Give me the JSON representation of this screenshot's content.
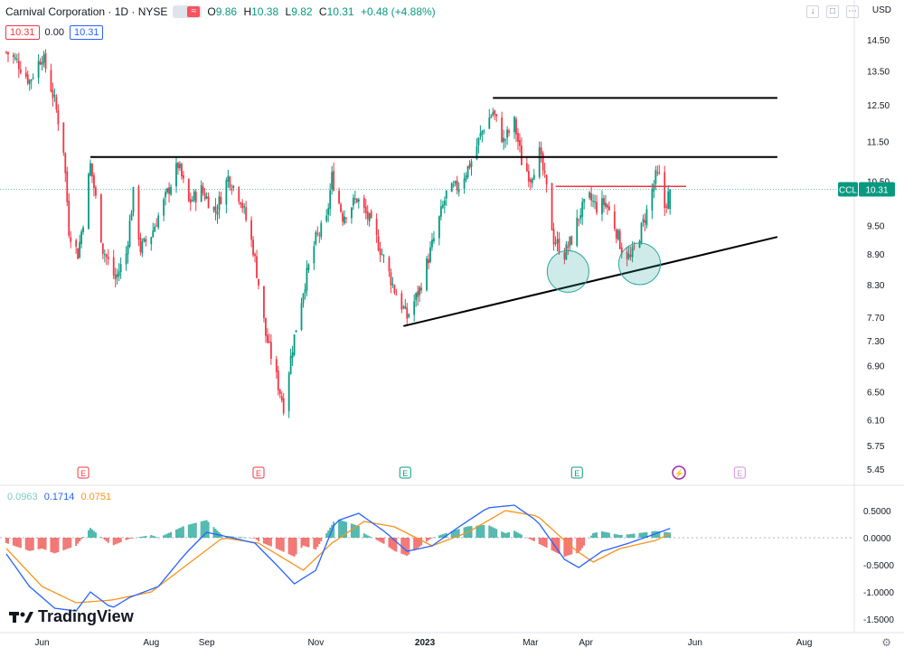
{
  "header": {
    "title": "Carnival Corporation · 1D · NYSE",
    "toggle_icon": "≈",
    "open_label": "O",
    "open": "9.86",
    "high_label": "H",
    "high": "10.38",
    "low_label": "L",
    "low": "9.82",
    "close_label": "C",
    "close": "10.31",
    "change": "+0.48 (+4.88%)",
    "box1": "10.31",
    "spread": "0.00",
    "box2": "10.31"
  },
  "currency": "USD",
  "symbol_tag": "CCL",
  "price_tag": "10.31",
  "macd_legend": {
    "hist": "0.0963",
    "macd": "0.1714",
    "signal": "0.0751"
  },
  "brand": "TradingView",
  "colors": {
    "up": "#089981",
    "down": "#f23645",
    "macd": "#2962ff",
    "signal": "#f7931a",
    "hist_up": "#26a69a",
    "hist_down": "#ef5350",
    "circle": "#26a69a"
  },
  "chart_data": {
    "type": "candlestick",
    "price_axis": {
      "ticks": [
        14.5,
        13.5,
        12.5,
        11.5,
        10.5,
        9.5,
        8.9,
        8.3,
        7.7,
        7.3,
        6.9,
        6.5,
        6.1,
        5.75,
        5.45
      ],
      "ylim": [
        5.45,
        14.5
      ],
      "scale": "log"
    },
    "macd_axis": {
      "ticks": [
        0.5,
        0.0,
        -0.5,
        -1.0,
        -1.5
      ],
      "ylim": [
        -1.5,
        0.5
      ]
    },
    "x_ticks": [
      "Jun",
      "Aug",
      "Sep",
      "Nov",
      "2023",
      "Mar",
      "Apr",
      "Jun",
      "Aug"
    ],
    "x_tick_pos": [
      "2022-06-01",
      "2022-08-01",
      "2022-09-01",
      "2022-11-01",
      "2023-01-01",
      "2023-03-01",
      "2023-04-01",
      "2023-06-01",
      "2023-08-01"
    ],
    "x_range": [
      "2022-05-11",
      "2023-08-29"
    ],
    "price_path": [
      [
        "2022-05-12",
        14.1
      ],
      [
        "2022-05-18",
        13.8
      ],
      [
        "2022-05-25",
        13.2
      ],
      [
        "2022-06-01",
        14.0
      ],
      [
        "2022-06-08",
        12.6
      ],
      [
        "2022-06-13",
        11.3
      ],
      [
        "2022-06-16",
        9.4
      ],
      [
        "2022-06-21",
        8.9
      ],
      [
        "2022-06-24",
        9.6
      ],
      [
        "2022-06-28",
        10.9
      ],
      [
        "2022-07-05",
        9.0
      ],
      [
        "2022-07-12",
        8.4
      ],
      [
        "2022-07-18",
        8.9
      ],
      [
        "2022-07-22",
        10.2
      ],
      [
        "2022-07-26",
        9.0
      ],
      [
        "2022-08-01",
        9.3
      ],
      [
        "2022-08-08",
        10.0
      ],
      [
        "2022-08-16",
        10.9
      ],
      [
        "2022-08-22",
        10.0
      ],
      [
        "2022-08-29",
        10.3
      ],
      [
        "2022-09-06",
        9.8
      ],
      [
        "2022-09-13",
        10.6
      ],
      [
        "2022-09-20",
        10.1
      ],
      [
        "2022-09-27",
        9.0
      ],
      [
        "2022-10-04",
        7.4
      ],
      [
        "2022-10-11",
        6.6
      ],
      [
        "2022-10-14",
        6.3
      ],
      [
        "2022-10-19",
        7.2
      ],
      [
        "2022-10-25",
        8.2
      ],
      [
        "2022-11-01",
        9.2
      ],
      [
        "2022-11-07",
        9.6
      ],
      [
        "2022-11-10",
        10.6
      ],
      [
        "2022-11-16",
        9.7
      ],
      [
        "2022-11-24",
        10.1
      ],
      [
        "2022-12-01",
        9.6
      ],
      [
        "2022-12-08",
        8.9
      ],
      [
        "2022-12-15",
        8.2
      ],
      [
        "2022-12-22",
        7.7
      ],
      [
        "2022-12-29",
        8.2
      ],
      [
        "2023-01-06",
        9.2
      ],
      [
        "2023-01-13",
        10.2
      ],
      [
        "2023-01-20",
        10.4
      ],
      [
        "2023-01-27",
        11.0
      ],
      [
        "2023-02-03",
        11.9
      ],
      [
        "2023-02-08",
        12.3
      ],
      [
        "2023-02-14",
        11.5
      ],
      [
        "2023-02-20",
        12.0
      ],
      [
        "2023-02-24",
        11.0
      ],
      [
        "2023-03-01",
        10.6
      ],
      [
        "2023-03-06",
        11.2
      ],
      [
        "2023-03-10",
        10.3
      ],
      [
        "2023-03-14",
        9.2
      ],
      [
        "2023-03-20",
        8.9
      ],
      [
        "2023-03-24",
        9.2
      ],
      [
        "2023-03-29",
        9.8
      ],
      [
        "2023-04-03",
        10.1
      ],
      [
        "2023-04-07",
        9.9
      ],
      [
        "2023-04-12",
        10.0
      ],
      [
        "2023-04-17",
        9.5
      ],
      [
        "2023-04-21",
        9.0
      ],
      [
        "2023-04-26",
        8.8
      ],
      [
        "2023-05-01",
        9.3
      ],
      [
        "2023-05-05",
        9.8
      ],
      [
        "2023-05-10",
        10.6
      ],
      [
        "2023-05-12",
        10.6
      ],
      [
        "2023-05-15",
        9.9
      ],
      [
        "2023-05-18",
        10.31
      ]
    ],
    "macd_path": [
      [
        "2022-05-12",
        -0.3
      ],
      [
        "2022-05-25",
        -0.9
      ],
      [
        "2022-06-08",
        -1.3
      ],
      [
        "2022-06-20",
        -1.35
      ],
      [
        "2022-06-28",
        -1.0
      ],
      [
        "2022-07-10",
        -1.3
      ],
      [
        "2022-07-20",
        -1.1
      ],
      [
        "2022-08-05",
        -0.9
      ],
      [
        "2022-08-20",
        -0.3
      ],
      [
        "2022-09-01",
        0.1
      ],
      [
        "2022-09-15",
        0.0
      ],
      [
        "2022-09-28",
        -0.1
      ],
      [
        "2022-10-10",
        -0.5
      ],
      [
        "2022-10-20",
        -0.85
      ],
      [
        "2022-11-01",
        -0.6
      ],
      [
        "2022-11-12",
        0.3
      ],
      [
        "2022-11-25",
        0.45
      ],
      [
        "2022-12-10",
        0.1
      ],
      [
        "2022-12-22",
        -0.25
      ],
      [
        "2023-01-05",
        -0.15
      ],
      [
        "2023-01-20",
        0.2
      ],
      [
        "2023-02-05",
        0.55
      ],
      [
        "2023-02-20",
        0.6
      ],
      [
        "2023-03-05",
        0.3
      ],
      [
        "2023-03-20",
        -0.4
      ],
      [
        "2023-03-28",
        -0.55
      ],
      [
        "2023-04-10",
        -0.25
      ],
      [
        "2023-04-25",
        -0.1
      ],
      [
        "2023-05-08",
        0.05
      ],
      [
        "2023-05-18",
        0.17
      ]
    ],
    "signal_path": [
      [
        "2022-05-12",
        -0.2
      ],
      [
        "2022-06-01",
        -0.9
      ],
      [
        "2022-06-20",
        -1.2
      ],
      [
        "2022-07-10",
        -1.15
      ],
      [
        "2022-08-01",
        -1.0
      ],
      [
        "2022-08-25",
        -0.4
      ],
      [
        "2022-09-10",
        0.0
      ],
      [
        "2022-09-30",
        -0.1
      ],
      [
        "2022-10-25",
        -0.6
      ],
      [
        "2022-11-10",
        -0.1
      ],
      [
        "2022-11-28",
        0.3
      ],
      [
        "2022-12-15",
        0.2
      ],
      [
        "2023-01-05",
        -0.15
      ],
      [
        "2023-01-25",
        0.1
      ],
      [
        "2023-02-15",
        0.5
      ],
      [
        "2023-03-05",
        0.4
      ],
      [
        "2023-03-25",
        -0.2
      ],
      [
        "2023-04-05",
        -0.45
      ],
      [
        "2023-04-20",
        -0.2
      ],
      [
        "2023-05-10",
        -0.05
      ],
      [
        "2023-05-18",
        0.075
      ]
    ],
    "lines": [
      {
        "name": "resistance-top",
        "color": "#000000",
        "from": [
          "2023-02-08",
          12.7
        ],
        "to": [
          "2023-07-17",
          12.7
        ]
      },
      {
        "name": "resistance-mid",
        "color": "#000000",
        "from": [
          "2022-06-28",
          11.1
        ],
        "to": [
          "2023-07-17",
          11.1
        ]
      },
      {
        "name": "resistance-red",
        "color": "#f23645",
        "from": [
          "2023-03-15",
          10.38
        ],
        "to": [
          "2023-05-27",
          10.38
        ]
      },
      {
        "name": "support-trend",
        "color": "#000000",
        "from": [
          "2022-12-20",
          7.55
        ],
        "to": [
          "2023-07-17",
          9.25
        ]
      }
    ],
    "circles": [
      [
        "2023-03-22",
        8.55
      ],
      [
        "2023-05-01",
        8.7
      ]
    ],
    "earnings_markers": [
      [
        "2022-06-24",
        "E"
      ],
      [
        "2022-09-30",
        "E"
      ],
      [
        "2022-12-21",
        "E"
      ],
      [
        "2023-03-27",
        "E"
      ],
      [
        "2023-05-23",
        "⚡"
      ],
      [
        "2023-06-26",
        "E"
      ]
    ],
    "xlabel": "",
    "ylabel": ""
  }
}
